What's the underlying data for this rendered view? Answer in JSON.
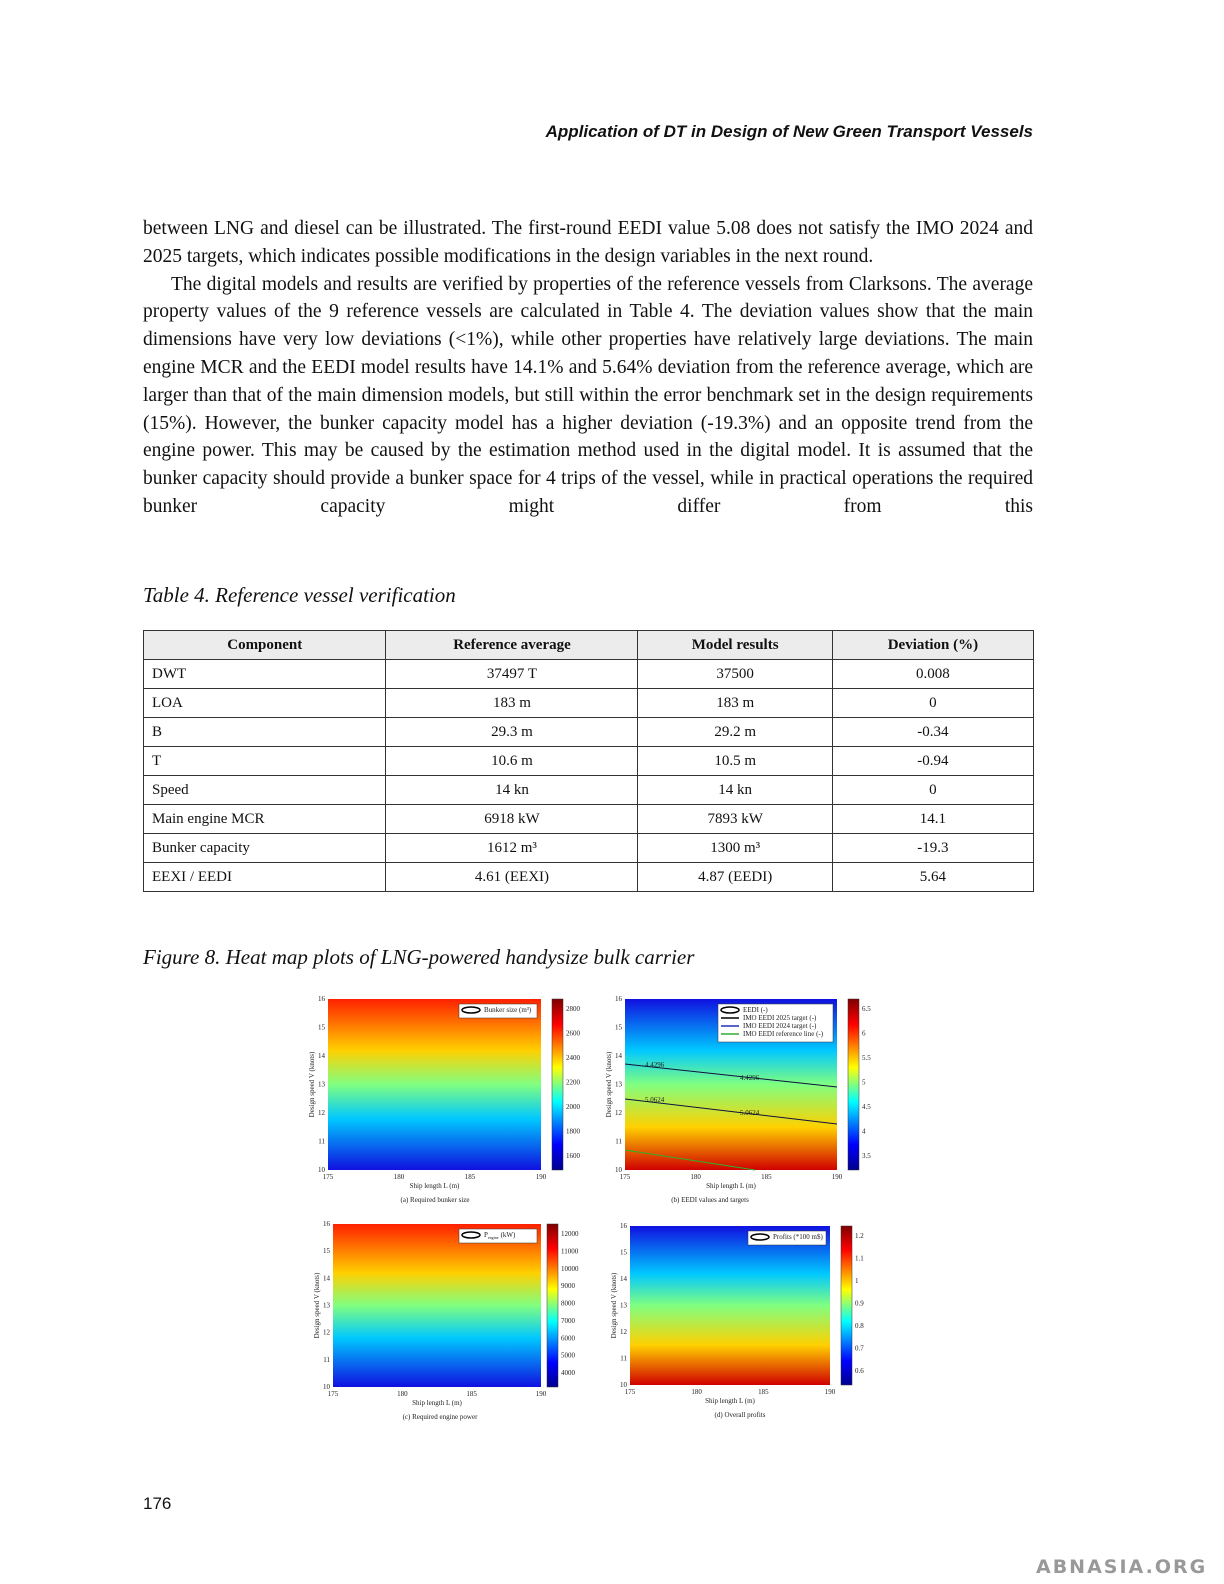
{
  "header": {
    "title": "Application of DT in Design of New Green Transport Vessels"
  },
  "paragraphs": [
    "between LNG and diesel can be illustrated. The first-round EEDI value 5.08 does not satisfy the IMO 2024 and 2025 targets, which indicates possible modifications in the design variables in the next round.",
    "The digital models and results are verified by properties of the reference vessels from Clarksons. The average property values of the 9 reference vessels are calculated in Table 4. The deviation values show that the main dimensions have very low deviations (<1%), while other properties have relatively large deviations. The main engine MCR and the EEDI model results have 14.1% and 5.64% deviation from the reference average, which are larger than that of the main dimension models, but still within the error benchmark set in the design requirements (15%). However, the bunker capacity model has a higher deviation (-19.3%) and an opposite trend from the engine power. This may be caused by the estimation method used in the digital model. It is assumed that the bunker capacity should provide a bunker space for 4 trips of the vessel, while in practical operations the required bunker capacity might differ from this"
  ],
  "table": {
    "caption": "Table 4. Reference vessel verification",
    "header": [
      "Component",
      "Reference average",
      "Model results",
      "Deviation (%)"
    ],
    "rows": [
      [
        "DWT",
        "37497 T",
        "37500",
        "0.008"
      ],
      [
        "LOA",
        "183 m",
        "183 m",
        "0"
      ],
      [
        "B",
        "29.3 m",
        "29.2 m",
        "-0.34"
      ],
      [
        "T",
        "10.6 m",
        "10.5 m",
        "-0.94"
      ],
      [
        "Speed",
        "14 kn",
        "14 kn",
        "0"
      ],
      [
        "Main engine MCR",
        "6918 kW",
        "7893 kW",
        "14.1"
      ],
      [
        "Bunker capacity",
        "1612 m³",
        "1300 m³",
        "-19.3"
      ],
      [
        "EEXI / EEDI",
        "4.61 (EEXI)",
        "4.87 (EEDI)",
        "5.64"
      ]
    ]
  },
  "figure": {
    "caption": "Figure 8. Heat map plots of LNG-powered handysize bulk carrier",
    "xlabel": "Ship length L (m)",
    "ylabel": "Design speed V (knots)",
    "xticks": [
      "175",
      "180",
      "185",
      "190"
    ],
    "yticks": [
      "10",
      "11",
      "12",
      "13",
      "14",
      "15",
      "16"
    ],
    "panels": [
      {
        "caption": "(a) Required bunker size",
        "legend": [
          "Bunker size (m³)"
        ],
        "colorbar_ticks": [
          "2800",
          "2600",
          "2400",
          "2200",
          "2000",
          "1800",
          "1600"
        ]
      },
      {
        "caption": "(b) EEDI values and targets",
        "legend": [
          "EEDI (-)",
          "IMO EEDI 2025 target (-)",
          "IMO EEDI 2024 target (-)",
          "IMO EEDI reference line (-)"
        ],
        "contour_labels": [
          "4.4296",
          "4.4296",
          "5.0624",
          "5.0624"
        ],
        "colorbar_ticks": [
          "6.5",
          "6",
          "5.5",
          "5",
          "4.5",
          "4",
          "3.5"
        ]
      },
      {
        "caption": "(c) Required engine power",
        "legend": [
          {
            "symbol": "P",
            "subscript": "engine",
            "unit": "(kW)"
          }
        ],
        "colorbar_ticks": [
          "12000",
          "11000",
          "10000",
          "9000",
          "8000",
          "7000",
          "6000",
          "5000",
          "4000"
        ]
      },
      {
        "caption": "(d) Overall profits",
        "legend": [
          "Profits (*100 m$)"
        ],
        "colorbar_ticks": [
          "1.2",
          "1.1",
          "1",
          "0.9",
          "0.8",
          "0.7",
          "0.6"
        ]
      }
    ]
  },
  "footer": {
    "page_number": "176",
    "watermark": "ABNASIA.ORG"
  }
}
